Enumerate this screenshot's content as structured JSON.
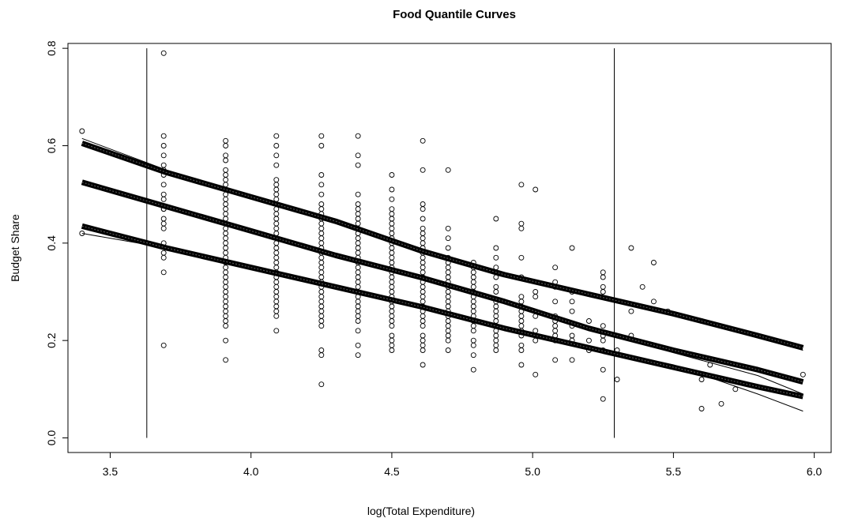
{
  "chart_data": {
    "type": "scatter",
    "title": "Food Quantile Curves",
    "xlabel": "log(Total Expenditure)",
    "ylabel": "Budget Share",
    "xlim": [
      3.35,
      6.06
    ],
    "ylim": [
      -0.03,
      0.81
    ],
    "x_ticks": [
      3.5,
      4.0,
      4.5,
      5.0,
      5.5,
      6.0
    ],
    "x_tick_labels": [
      "3.5",
      "4.0",
      "4.5",
      "5.0",
      "5.5",
      "6.0"
    ],
    "y_ticks": [
      0.0,
      0.2,
      0.4,
      0.6,
      0.8
    ],
    "y_tick_labels": [
      "0.0",
      "0.2",
      "0.4",
      "0.6",
      "0.8"
    ],
    "grid": false,
    "legend": "none",
    "vertical_lines": [
      3.63,
      5.29
    ],
    "series": [
      {
        "values": [
          {
            "x": 3.69,
            "y": [
              0.79,
              0.62,
              0.6,
              0.58,
              0.56,
              0.55,
              0.54,
              0.52,
              0.5,
              0.49,
              0.47,
              0.47,
              0.45,
              0.44,
              0.43,
              0.4,
              0.38,
              0.37,
              0.34,
              0.19
            ]
          },
          {
            "x": 3.91,
            "y": [
              0.61,
              0.6,
              0.58,
              0.57,
              0.55,
              0.54,
              0.53,
              0.52,
              0.51,
              0.5,
              0.49,
              0.48,
              0.47,
              0.46,
              0.45,
              0.44,
              0.43,
              0.42,
              0.41,
              0.4,
              0.39,
              0.38,
              0.37,
              0.36,
              0.35,
              0.34,
              0.33,
              0.32,
              0.31,
              0.3,
              0.29,
              0.28,
              0.27,
              0.26,
              0.25,
              0.24,
              0.23,
              0.2,
              0.16
            ]
          },
          {
            "x": 4.09,
            "y": [
              0.62,
              0.6,
              0.58,
              0.56,
              0.53,
              0.52,
              0.51,
              0.5,
              0.49,
              0.48,
              0.47,
              0.46,
              0.45,
              0.44,
              0.43,
              0.42,
              0.41,
              0.4,
              0.39,
              0.38,
              0.37,
              0.36,
              0.35,
              0.34,
              0.33,
              0.32,
              0.31,
              0.3,
              0.29,
              0.28,
              0.27,
              0.26,
              0.25,
              0.22
            ]
          },
          {
            "x": 4.25,
            "y": [
              0.62,
              0.6,
              0.54,
              0.52,
              0.5,
              0.48,
              0.47,
              0.46,
              0.45,
              0.44,
              0.43,
              0.42,
              0.41,
              0.4,
              0.39,
              0.38,
              0.37,
              0.36,
              0.35,
              0.34,
              0.33,
              0.32,
              0.31,
              0.3,
              0.29,
              0.28,
              0.27,
              0.26,
              0.25,
              0.24,
              0.23,
              0.18,
              0.17,
              0.11
            ]
          },
          {
            "x": 4.38,
            "y": [
              0.62,
              0.58,
              0.56,
              0.5,
              0.48,
              0.47,
              0.46,
              0.45,
              0.44,
              0.43,
              0.42,
              0.41,
              0.4,
              0.39,
              0.38,
              0.37,
              0.36,
              0.35,
              0.34,
              0.33,
              0.32,
              0.31,
              0.3,
              0.29,
              0.28,
              0.27,
              0.26,
              0.25,
              0.24,
              0.22,
              0.19,
              0.17
            ]
          },
          {
            "x": 4.5,
            "y": [
              0.54,
              0.51,
              0.49,
              0.47,
              0.46,
              0.45,
              0.44,
              0.43,
              0.42,
              0.41,
              0.4,
              0.39,
              0.38,
              0.37,
              0.36,
              0.35,
              0.34,
              0.33,
              0.32,
              0.31,
              0.3,
              0.29,
              0.28,
              0.27,
              0.26,
              0.25,
              0.24,
              0.23,
              0.21,
              0.2,
              0.19,
              0.18
            ]
          },
          {
            "x": 4.61,
            "y": [
              0.61,
              0.55,
              0.48,
              0.47,
              0.45,
              0.43,
              0.42,
              0.41,
              0.4,
              0.39,
              0.38,
              0.37,
              0.36,
              0.35,
              0.34,
              0.33,
              0.32,
              0.31,
              0.3,
              0.29,
              0.28,
              0.27,
              0.26,
              0.25,
              0.24,
              0.23,
              0.21,
              0.2,
              0.19,
              0.18,
              0.15
            ]
          },
          {
            "x": 4.7,
            "y": [
              0.55,
              0.43,
              0.41,
              0.39,
              0.37,
              0.36,
              0.35,
              0.34,
              0.33,
              0.32,
              0.31,
              0.3,
              0.29,
              0.28,
              0.27,
              0.26,
              0.25,
              0.24,
              0.23,
              0.22,
              0.21,
              0.2,
              0.18
            ]
          },
          {
            "x": 4.79,
            "y": [
              0.36,
              0.35,
              0.34,
              0.33,
              0.32,
              0.31,
              0.3,
              0.29,
              0.28,
              0.27,
              0.26,
              0.25,
              0.24,
              0.23,
              0.22,
              0.2,
              0.19,
              0.17,
              0.14
            ]
          },
          {
            "x": 4.87,
            "y": [
              0.45,
              0.39,
              0.37,
              0.35,
              0.34,
              0.33,
              0.31,
              0.3,
              0.28,
              0.27,
              0.26,
              0.25,
              0.24,
              0.23,
              0.22,
              0.21,
              0.2,
              0.19,
              0.18
            ]
          },
          {
            "x": 4.96,
            "y": [
              0.52,
              0.44,
              0.43,
              0.37,
              0.33,
              0.29,
              0.28,
              0.27,
              0.26,
              0.25,
              0.24,
              0.23,
              0.22,
              0.21,
              0.19,
              0.18,
              0.15
            ]
          },
          {
            "x": 5.01,
            "y": [
              0.51,
              0.3,
              0.29,
              0.25,
              0.22,
              0.2,
              0.13
            ]
          },
          {
            "x": 5.08,
            "y": [
              0.35,
              0.32,
              0.31,
              0.28,
              0.25,
              0.24,
              0.23,
              0.22,
              0.21,
              0.2,
              0.16
            ]
          },
          {
            "x": 5.14,
            "y": [
              0.39,
              0.3,
              0.28,
              0.26,
              0.23,
              0.21,
              0.2,
              0.16
            ]
          },
          {
            "x": 5.2,
            "y": [
              0.24,
              0.2,
              0.18
            ]
          },
          {
            "x": 5.25,
            "y": [
              0.34,
              0.33,
              0.31,
              0.3,
              0.23,
              0.21,
              0.2,
              0.18,
              0.14,
              0.08
            ]
          },
          {
            "x": 5.3,
            "y": [
              0.18,
              0.12
            ]
          },
          {
            "x": 5.35,
            "y": [
              0.39,
              0.26,
              0.21
            ]
          },
          {
            "x": 5.39,
            "y": [
              0.31
            ]
          },
          {
            "x": 5.43,
            "y": [
              0.36,
              0.28
            ]
          },
          {
            "x": 5.48,
            "y": [
              0.26
            ]
          },
          {
            "x": 5.6,
            "y": [
              0.24,
              0.12,
              0.06
            ]
          },
          {
            "x": 5.63,
            "y": [
              0.15
            ]
          },
          {
            "x": 5.67,
            "y": [
              0.07
            ]
          },
          {
            "x": 5.72,
            "y": [
              0.1
            ]
          },
          {
            "x": 5.96,
            "y": [
              0.13
            ]
          },
          {
            "x": 3.4,
            "y": [
              0.63,
              0.42
            ]
          }
        ]
      }
    ],
    "quantile_curves": [
      {
        "x": [
          3.4,
          3.7,
          4.0,
          4.3,
          4.6,
          4.9,
          5.2,
          5.5,
          5.8,
          5.96
        ],
        "y": [
          0.605,
          0.545,
          0.495,
          0.445,
          0.385,
          0.335,
          0.295,
          0.255,
          0.21,
          0.185
        ]
      },
      {
        "x": [
          3.4,
          3.7,
          4.0,
          4.3,
          4.6,
          4.9,
          5.2,
          5.5,
          5.8,
          5.96
        ],
        "y": [
          0.525,
          0.475,
          0.425,
          0.375,
          0.33,
          0.28,
          0.225,
          0.18,
          0.14,
          0.115
        ]
      },
      {
        "x": [
          3.4,
          3.7,
          4.0,
          4.3,
          4.6,
          4.9,
          5.2,
          5.5,
          5.8,
          5.96
        ],
        "y": [
          0.435,
          0.39,
          0.35,
          0.31,
          0.27,
          0.225,
          0.185,
          0.145,
          0.105,
          0.085
        ]
      }
    ],
    "smooth_curves": [
      {
        "x": [
          3.4,
          3.7,
          4.0,
          4.3,
          4.6,
          4.9,
          5.2,
          5.5,
          5.8,
          5.96
        ],
        "y": [
          0.615,
          0.55,
          0.492,
          0.44,
          0.386,
          0.335,
          0.29,
          0.252,
          0.205,
          0.18
        ]
      },
      {
        "x": [
          3.4,
          3.7,
          4.0,
          4.3,
          4.6,
          4.9,
          5.2,
          5.5,
          5.8,
          5.96
        ],
        "y": [
          0.52,
          0.472,
          0.428,
          0.374,
          0.33,
          0.282,
          0.228,
          0.175,
          0.128,
          0.09
        ]
      },
      {
        "x": [
          3.4,
          3.7,
          4.0,
          4.3,
          4.6,
          4.9,
          5.2,
          5.5,
          5.8,
          5.96
        ],
        "y": [
          0.42,
          0.39,
          0.352,
          0.312,
          0.268,
          0.222,
          0.186,
          0.15,
          0.09,
          0.055
        ]
      }
    ]
  }
}
